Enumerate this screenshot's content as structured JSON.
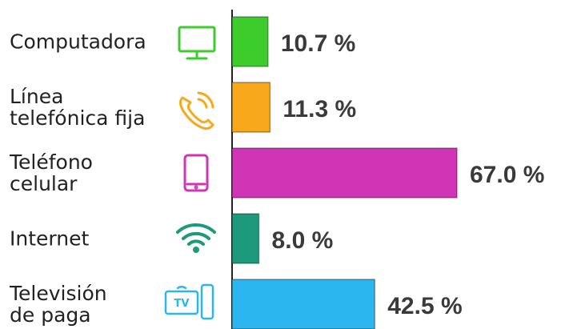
{
  "chart_data": {
    "type": "barh",
    "categories": [
      "Computadora",
      "Línea\ntelefónica fija",
      "Teléfono\ncelular",
      "Internet",
      "Televisión\nde paga"
    ],
    "values": [
      10.7,
      11.3,
      67.0,
      8.0,
      42.5
    ],
    "value_labels": [
      "10.7 %",
      "11.3 %",
      "67.0 %",
      "8.0 %",
      "42.5 %"
    ],
    "colors": [
      "#3ccc2c",
      "#f7a81b",
      "#cf35b4",
      "#1d9a7c",
      "#2cb6ef"
    ]
  }
}
